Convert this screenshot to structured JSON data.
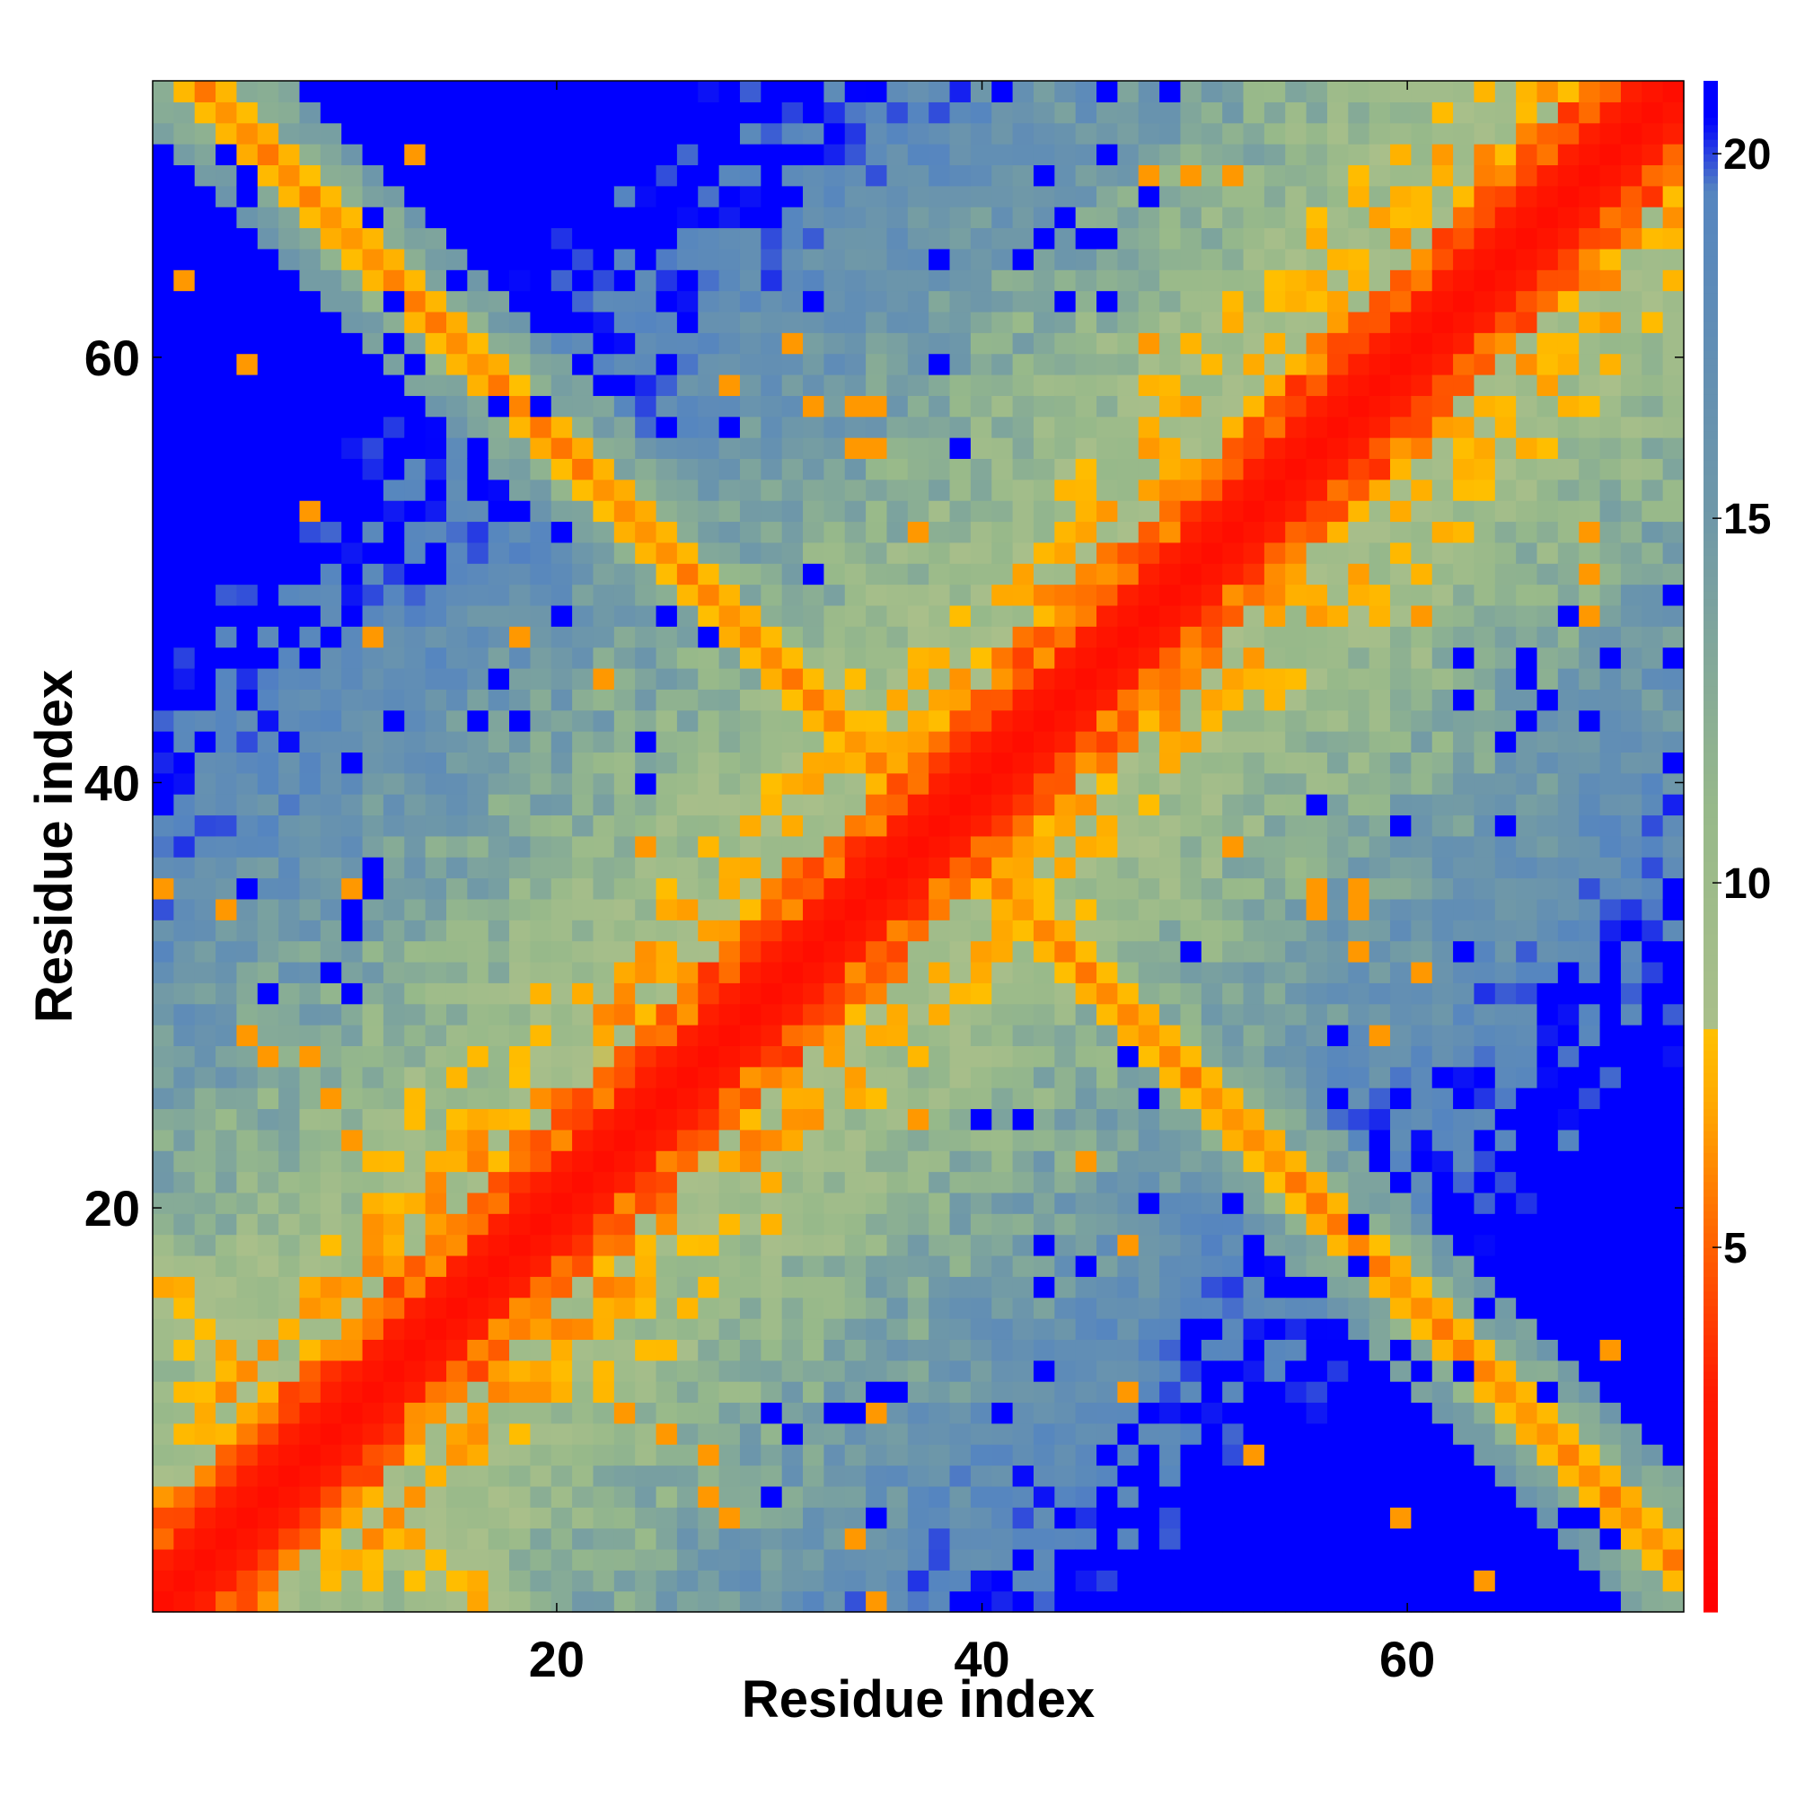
{
  "chart_data": {
    "type": "heatmap",
    "title": "",
    "xlabel": "Residue index",
    "ylabel": "Residue index",
    "n_residues": 73,
    "xlim": [
      1,
      73
    ],
    "ylim": [
      1,
      73
    ],
    "x_ticks": [
      20,
      40,
      60
    ],
    "y_ticks": [
      20,
      40,
      60
    ],
    "colorbar": {
      "range": [
        0,
        21
      ],
      "ticks": [
        5,
        10,
        15,
        20
      ],
      "stops": [
        {
          "value": 0,
          "color": "#ff0000"
        },
        {
          "value": 3,
          "color": "#ff1a00"
        },
        {
          "value": 5,
          "color": "#ff6000"
        },
        {
          "value": 7,
          "color": "#ffaa00"
        },
        {
          "value": 8,
          "color": "#ffc000"
        },
        {
          "value": 8.01,
          "color": "#a9bf8a"
        },
        {
          "value": 11,
          "color": "#97b98a"
        },
        {
          "value": 15,
          "color": "#6f98a8"
        },
        {
          "value": 19.5,
          "color": "#5585c0"
        },
        {
          "value": 20.5,
          "color": "#0000ff"
        },
        {
          "value": 21,
          "color": "#0000ff"
        }
      ]
    },
    "cell_value": "pairwise residue distance; symmetric matrix; red diagonal band (0-3), orange contacts (5-8) along i=j±3 helical band and anti-diagonal cross-strand pairing, blue regions saturated above 20"
  }
}
